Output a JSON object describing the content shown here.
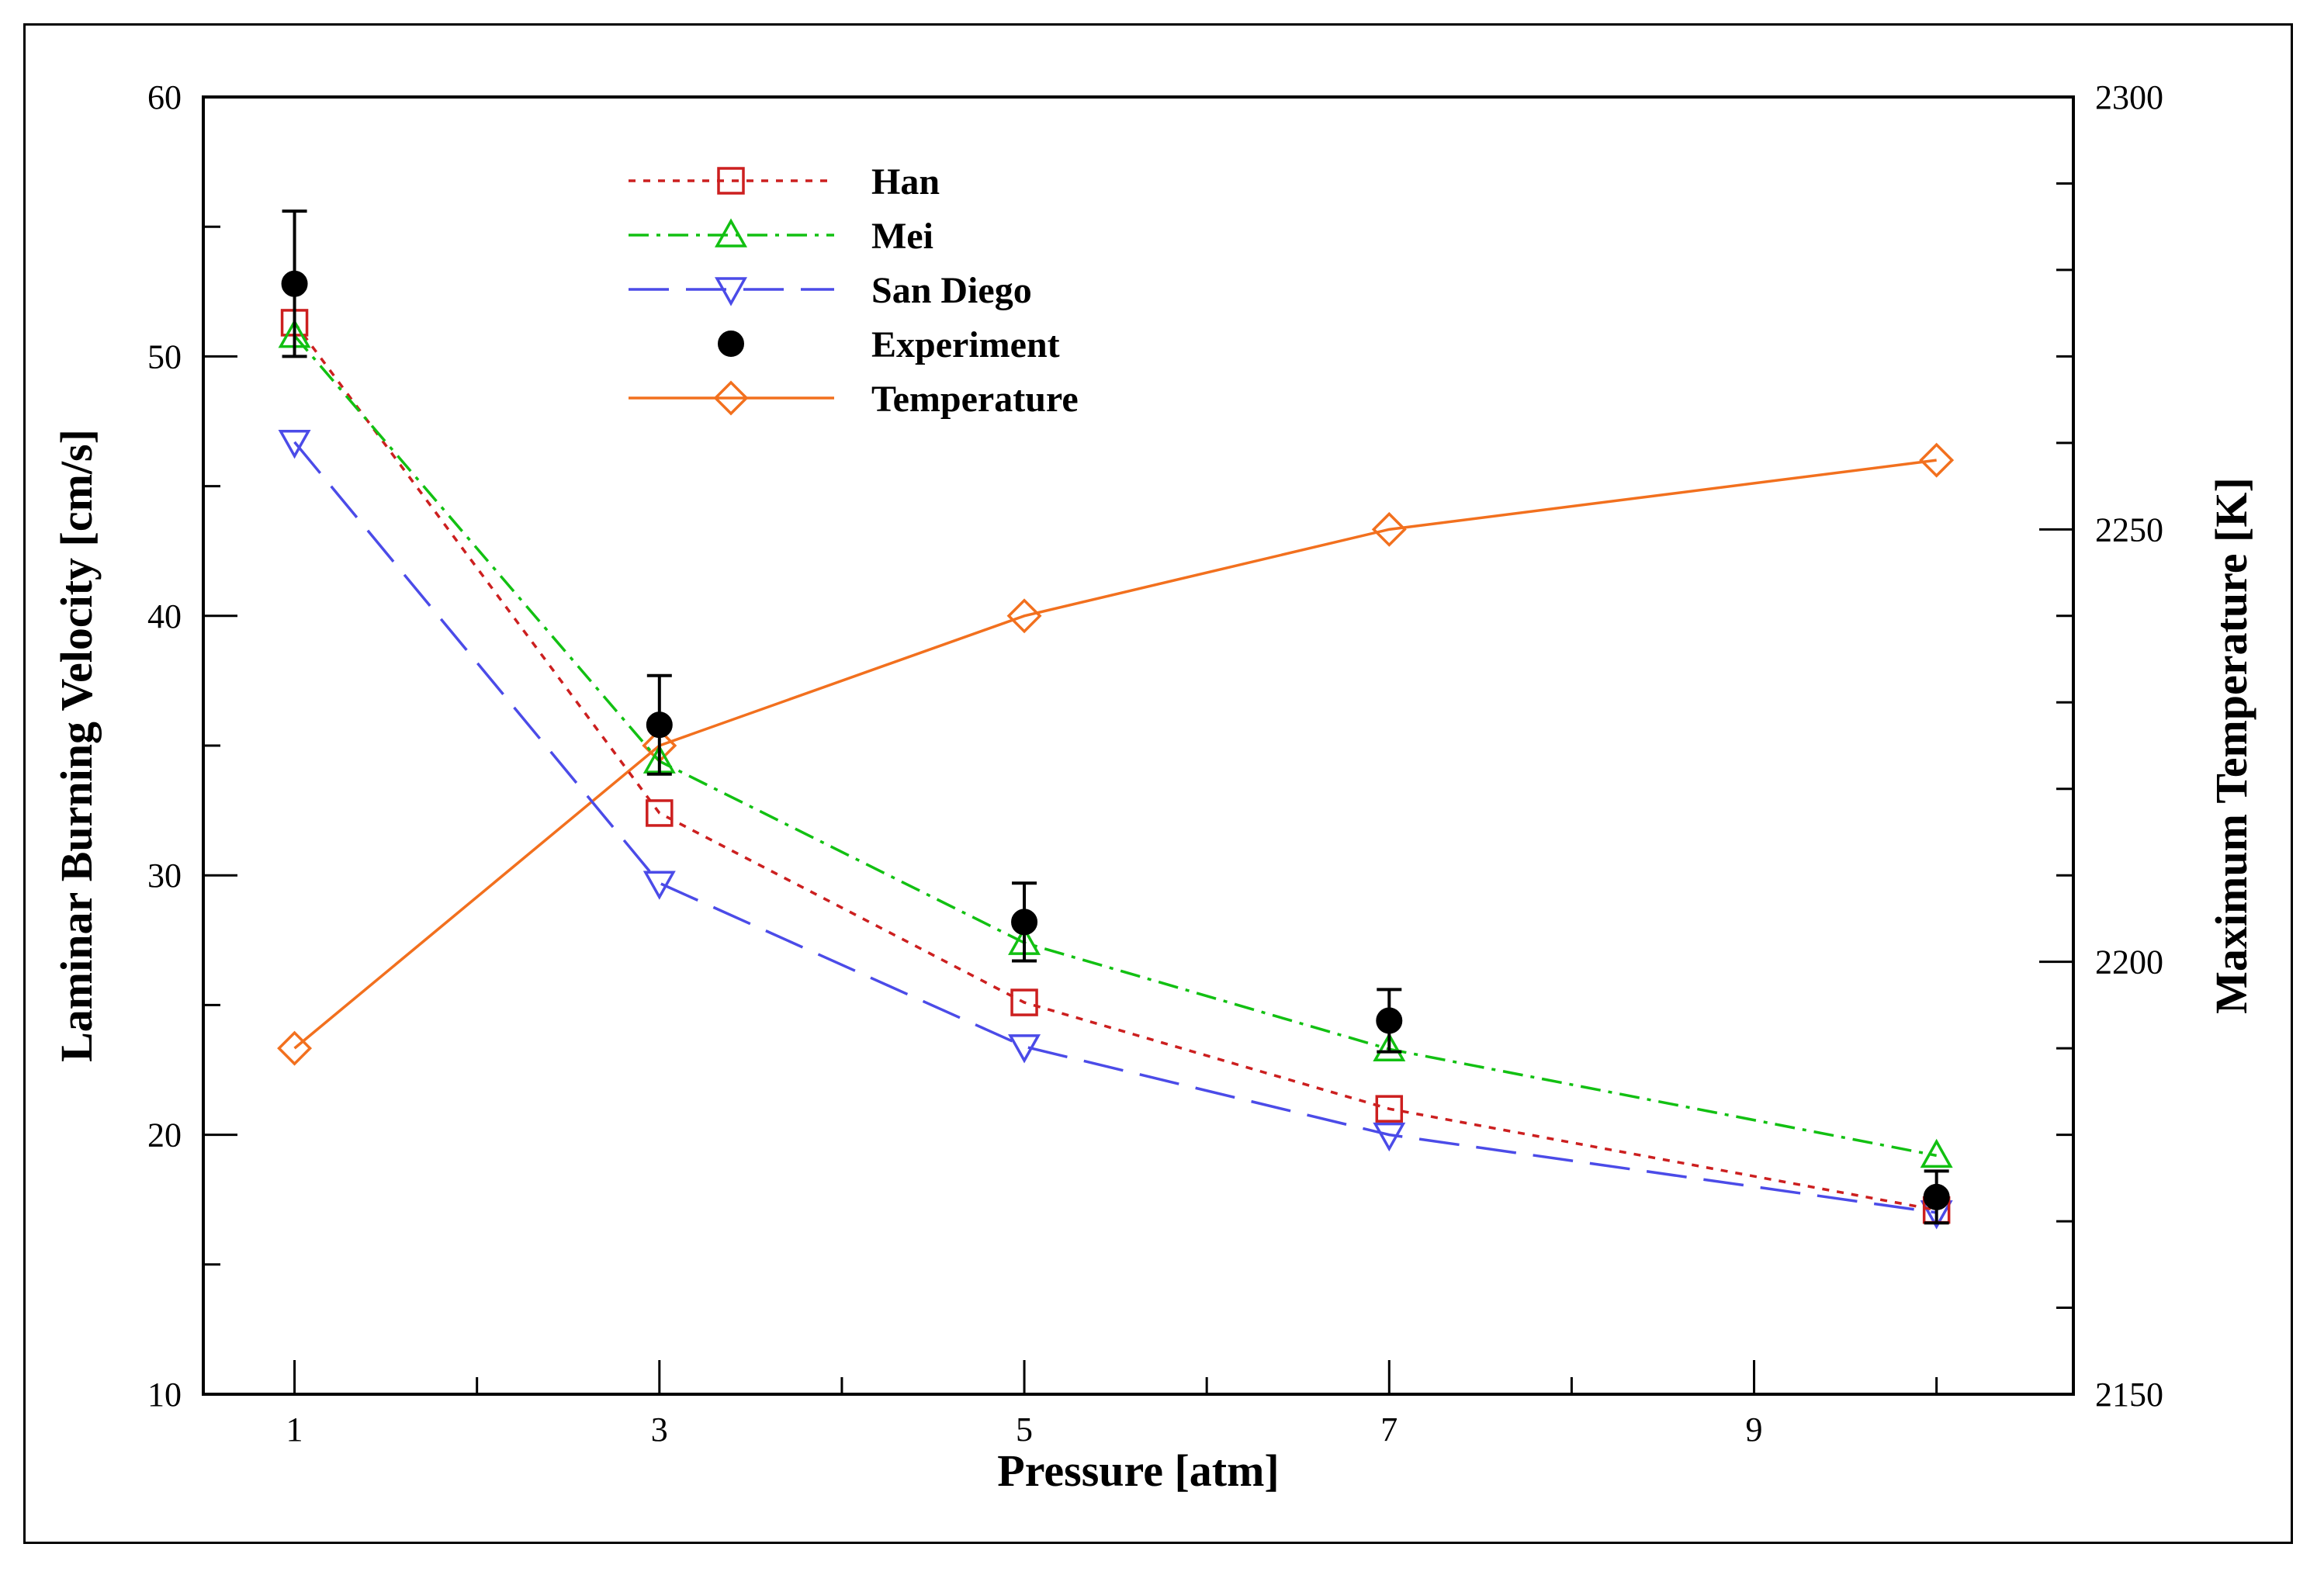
{
  "chart_data": {
    "type": "line",
    "title": "",
    "xlabel": "Pressure [atm]",
    "ylabel": "Laminar Burning Velocity [cm/s]",
    "y2label": "Maximum Temperature [K]",
    "xlim": [
      0.5,
      10.75
    ],
    "ylim": [
      10,
      60
    ],
    "y2lim": [
      2150,
      2300
    ],
    "xticks": [
      1,
      3,
      5,
      7,
      9
    ],
    "xtick_labels": [
      "1",
      "3",
      "5",
      "7",
      "9"
    ],
    "xminor_ticks": [
      2,
      4,
      6,
      8,
      10
    ],
    "yticks": [
      10,
      20,
      30,
      40,
      50,
      60
    ],
    "ytick_labels": [
      "10",
      "20",
      "30",
      "40",
      "50",
      "60"
    ],
    "yminor_ticks": [
      15,
      25,
      35,
      45,
      55
    ],
    "y2ticks": [
      2150,
      2200,
      2250,
      2300
    ],
    "y2tick_labels": [
      "2150",
      "2200",
      "2250",
      "2300"
    ],
    "y2minor_ticks": [
      2160,
      2170,
      2180,
      2190,
      2210,
      2220,
      2230,
      2240,
      2260,
      2270,
      2280,
      2290
    ],
    "legend_position": "top-left",
    "x": [
      1,
      3,
      5,
      7,
      10
    ],
    "series": [
      {
        "name": "Han",
        "axis": "left",
        "color": "#cc1f1f",
        "marker": "square",
        "dash": "dotted",
        "values": [
          51.3,
          32.4,
          25.1,
          21.0,
          17.1
        ]
      },
      {
        "name": "Mei",
        "axis": "left",
        "color": "#12c012",
        "marker": "triangle-up",
        "dash": "dashdot",
        "values": [
          50.8,
          34.4,
          27.4,
          23.3,
          19.2
        ]
      },
      {
        "name": "San Diego",
        "axis": "left",
        "color": "#4b4be8",
        "marker": "triangle-down",
        "dash": "longdash",
        "values": [
          46.7,
          29.7,
          23.4,
          20.0,
          17.0
        ]
      },
      {
        "name": "Experiment",
        "axis": "left",
        "color": "#000000",
        "marker": "circle",
        "dash": "none",
        "values": [
          52.8,
          35.8,
          28.2,
          24.4,
          17.6
        ],
        "error": [
          2.8,
          1.9,
          1.5,
          1.2,
          1.0
        ]
      },
      {
        "name": "Temperature",
        "axis": "right",
        "color": "#f2701e",
        "marker": "diamond",
        "dash": "solid",
        "values": [
          2190,
          2225,
          2240,
          2250,
          2258
        ]
      }
    ]
  }
}
